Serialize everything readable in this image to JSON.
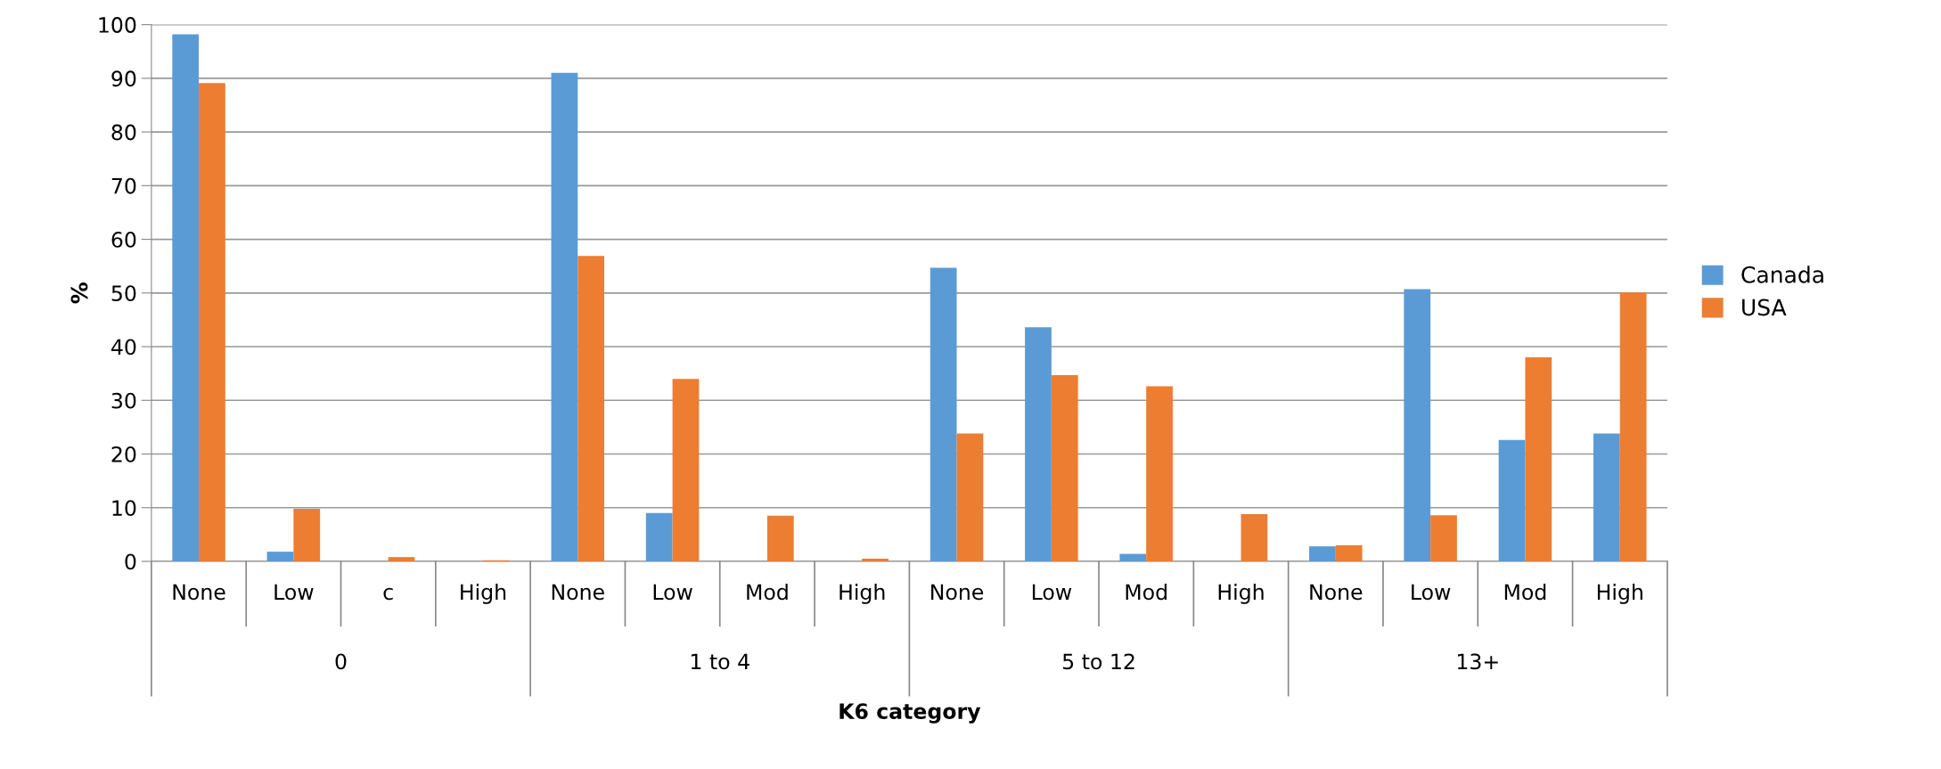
{
  "chart_data": {
    "type": "bar",
    "xlabel": "K6 category",
    "ylabel": "%",
    "categories": [
      "None",
      "Low",
      "c",
      "High",
      "None",
      "Low",
      "Mod",
      "High",
      "None",
      "Low",
      "Mod",
      "High",
      "None",
      "Low",
      "Mod",
      "High"
    ],
    "series": [
      {
        "name": "Canada",
        "color": "#5b9bd5",
        "values": [
          98.2,
          1.8,
          0,
          0,
          91,
          9,
          0,
          0,
          54.7,
          43.6,
          1.4,
          0,
          2.8,
          50.7,
          22.6,
          23.8
        ]
      },
      {
        "name": "USA",
        "color": "#ed7d31",
        "values": [
          89.1,
          9.8,
          0.8,
          0.2,
          56.9,
          34,
          8.5,
          0.5,
          23.8,
          34.7,
          32.6,
          8.8,
          3.0,
          8.6,
          38,
          50.1
        ]
      }
    ],
    "annotations": [
      "0",
      "1 to 4",
      "5 to 12",
      "13+"
    ],
    "ylim": [
      0,
      100
    ],
    "yticks": [
      0,
      10,
      20,
      30,
      40,
      50,
      60,
      70,
      80,
      90,
      100
    ],
    "grid": "y",
    "legend": "right"
  }
}
